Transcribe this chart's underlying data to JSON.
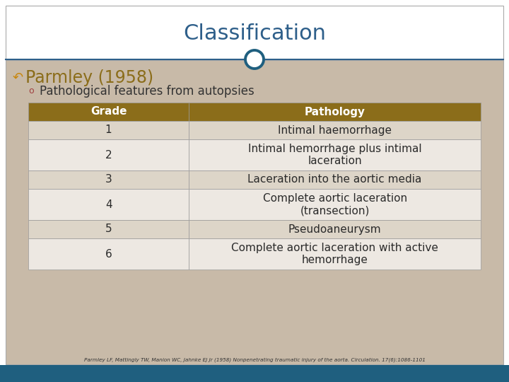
{
  "title": "Classification",
  "title_color": "#2E5F8A",
  "bg_color": "#FFFFFF",
  "slide_bg": "#C8BAA8",
  "header_bg": "#8B6D1A",
  "header_text_color": "#FFFFFF",
  "row_odd_bg": "#DDD5C8",
  "row_even_bg": "#EDE8E2",
  "row_text_color": "#2A2A2A",
  "bullet1": "Parmley (1958)",
  "bullet1_color": "#8B6D1A",
  "bullet1_symbol_color": "#C8860A",
  "bullet2": "Pathological features from autopsies",
  "bullet2_color": "#333333",
  "bullet2_symbol_color": "#A04040",
  "table_headers": [
    "Grade",
    "Pathology"
  ],
  "table_rows": [
    [
      "1",
      "Intimal haemorrhage"
    ],
    [
      "2",
      "Intimal hemorrhage plus intimal\nlaceration"
    ],
    [
      "3",
      "Laceration into the aortic media"
    ],
    [
      "4",
      "Complete aortic laceration\n(transection)"
    ],
    [
      "5",
      "Pseudoaneurysm"
    ],
    [
      "6",
      "Complete aortic laceration with active\nhemorrhage"
    ]
  ],
  "footnote": "Parmley LF, Mattingly TW, Manion WC, Jahnke EJ Jr (1958) Nonpenetrating traumatic injury of the aorta. Circulation. 17(6):1086-1101",
  "bottom_bar_color": "#1F5F7F",
  "circle_color": "#1F5F7F",
  "border_line_color": "#2E5F8A",
  "table_border_color": "#999999"
}
